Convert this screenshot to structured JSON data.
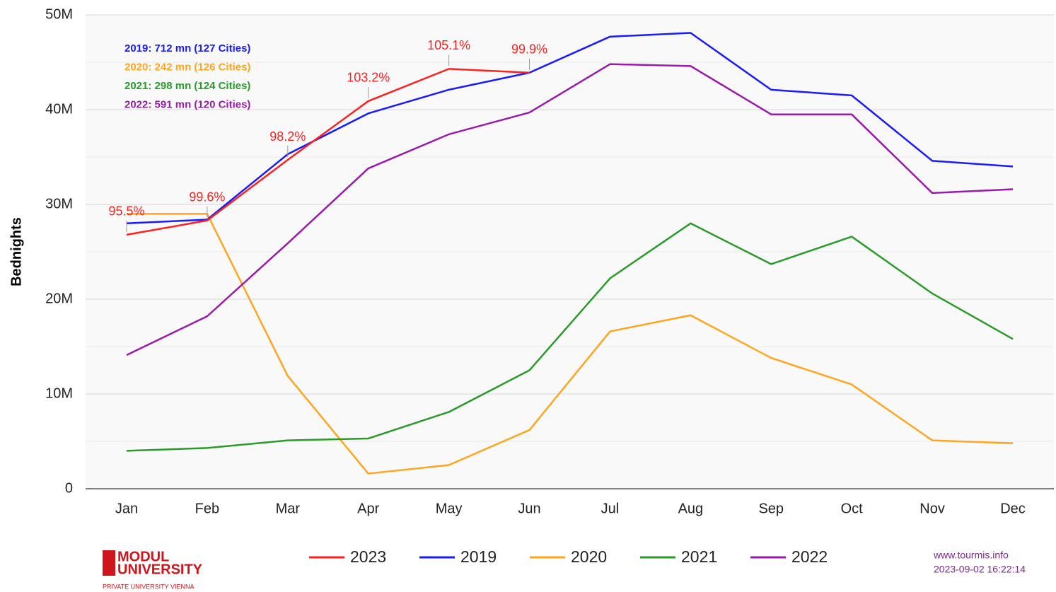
{
  "chart_data": {
    "type": "line",
    "y_label": "Bednights",
    "categories": [
      "Jan",
      "Feb",
      "Mar",
      "Apr",
      "May",
      "Jun",
      "Jul",
      "Aug",
      "Sep",
      "Oct",
      "Nov",
      "Dec"
    ],
    "series": [
      {
        "name": "2023",
        "color": "#ff2020",
        "values": [
          26800000,
          28300000,
          34700000,
          40900000,
          44300000,
          43900000,
          null,
          null,
          null,
          null,
          null,
          null
        ]
      },
      {
        "name": "2019",
        "color": "#1a1aff",
        "values": [
          28000000,
          28400000,
          35300000,
          39600000,
          42100000,
          43900000,
          47700000,
          48100000,
          42100000,
          41500000,
          34600000,
          34000000
        ]
      },
      {
        "name": "2020",
        "color": "#ffa520",
        "values": [
          29000000,
          29000000,
          11900000,
          1600000,
          2500000,
          6200000,
          16600000,
          18300000,
          13800000,
          11000000,
          5100000,
          4800000
        ]
      },
      {
        "name": "2021",
        "color": "#2a9a2a",
        "values": [
          4000000,
          4300000,
          5100000,
          5300000,
          8100000,
          12500000,
          22200000,
          28000000,
          23700000,
          26600000,
          20600000,
          15800000
        ]
      },
      {
        "name": "2022",
        "color": "#9a1aaa",
        "values": [
          14100000,
          18200000,
          25900000,
          33800000,
          37400000,
          39700000,
          44800000,
          44600000,
          39500000,
          39500000,
          31200000,
          31600000
        ]
      }
    ],
    "annotations": [
      "95.5%",
      "99.6%",
      "98.2%",
      "103.2%",
      "105.1%",
      "99.9%"
    ],
    "summary": [
      {
        "text": "2019: 712 mn (127 Cities)",
        "color": "#1a1aff"
      },
      {
        "text": "2020: 242 mn (126 Cities)",
        "color": "#ffa520"
      },
      {
        "text": "2021: 298 mn (124 Cities)",
        "color": "#2a9a2a"
      },
      {
        "text": "2022: 591 mn (120 Cities)",
        "color": "#9a1aaa"
      }
    ],
    "ylim": [
      0,
      50000000
    ],
    "yticks": [
      0,
      {
        "value": 10000000,
        "label": "10M"
      },
      {
        "value": 20000000,
        "label": "20M"
      },
      {
        "value": 30000000,
        "label": "30M"
      },
      {
        "value": 40000000,
        "label": "40M"
      },
      {
        "value": 50000000,
        "label": "50M"
      }
    ],
    "minor_yticks": [
      5000000,
      15000000,
      25000000,
      35000000,
      45000000
    ],
    "grid": true,
    "legend": "bottom",
    "source": "www.tourmis.info",
    "timestamp": "2023-09-02 16:22:14",
    "logo": {
      "line1": "MODUL",
      "line2": "UNIVERSITY",
      "tagline": "PRIVATE UNIVERSITY VIENNA"
    }
  }
}
